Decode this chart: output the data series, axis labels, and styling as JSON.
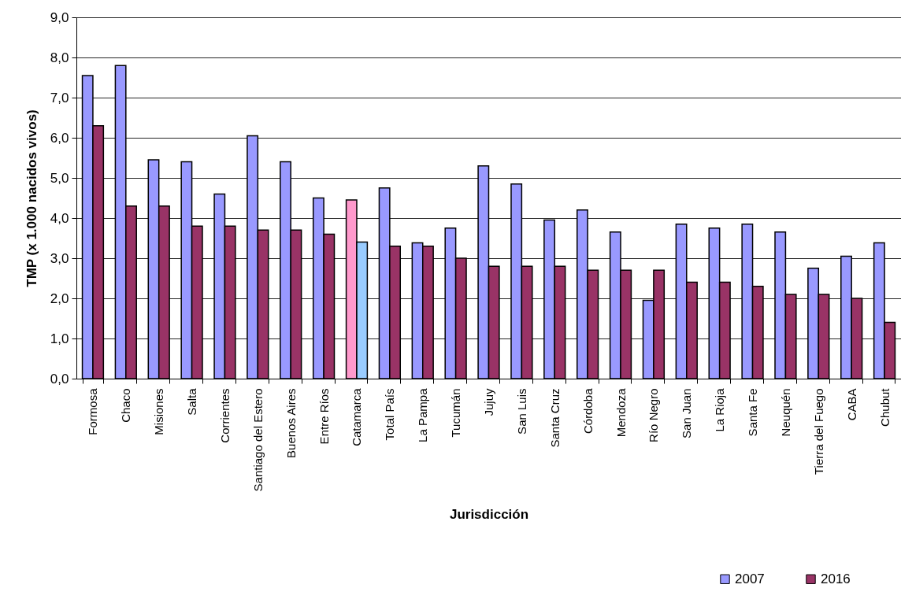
{
  "chart_data": {
    "type": "bar",
    "xlabel": "Jurisdicción",
    "ylabel": "TMP (x 1.000 nacidos vivos)",
    "categories": [
      "Formosa",
      "Chaco",
      "Misiones",
      "Salta",
      "Corrientes",
      "Santiago del Estero",
      "Buenos Aires",
      "Entre Ríos",
      "Catamarca",
      "Total País",
      "La Pampa",
      "Tucumán",
      "Jujuy",
      "San Luis",
      "Santa Cruz",
      "Córdoba",
      "Mendoza",
      "Río Negro",
      "San Juan",
      "La Rioja",
      "Santa Fe",
      "Neuquén",
      "Tierra del Fuego",
      "CABA",
      "Chubut"
    ],
    "series": [
      {
        "name": "2007",
        "color": "#9999ff",
        "colors": [
          "#9999ff",
          "#9999ff",
          "#9999ff",
          "#9999ff",
          "#9999ff",
          "#9999ff",
          "#9999ff",
          "#9999ff",
          "#ff99cc",
          "#9999ff",
          "#9999ff",
          "#9999ff",
          "#9999ff",
          "#9999ff",
          "#9999ff",
          "#9999ff",
          "#9999ff",
          "#9999ff",
          "#9999ff",
          "#9999ff",
          "#9999ff",
          "#9999ff",
          "#9999ff",
          "#9999ff",
          "#9999ff"
        ],
        "values": [
          7.55,
          7.8,
          5.45,
          5.4,
          4.6,
          6.05,
          5.4,
          4.5,
          4.45,
          4.75,
          3.38,
          3.75,
          5.3,
          4.85,
          3.95,
          4.2,
          3.65,
          1.95,
          3.85,
          3.75,
          3.85,
          3.65,
          2.75,
          3.05,
          3.38
        ]
      },
      {
        "name": "2016",
        "color": "#993366",
        "colors": [
          "#993366",
          "#993366",
          "#993366",
          "#993366",
          "#993366",
          "#993366",
          "#993366",
          "#993366",
          "#99ccff",
          "#993366",
          "#993366",
          "#993366",
          "#993366",
          "#993366",
          "#993366",
          "#993366",
          "#993366",
          "#993366",
          "#993366",
          "#993366",
          "#993366",
          "#993366",
          "#993366",
          "#993366",
          "#993366"
        ],
        "values": [
          6.3,
          4.3,
          4.3,
          3.8,
          3.8,
          3.7,
          3.7,
          3.6,
          3.4,
          3.3,
          3.3,
          3.0,
          2.8,
          2.8,
          2.8,
          2.7,
          2.7,
          2.7,
          2.4,
          2.4,
          2.3,
          2.1,
          2.1,
          2.0,
          1.4
        ]
      }
    ],
    "ylim": [
      0,
      9
    ],
    "yticks": [
      {
        "value": 0,
        "label": "0,0"
      },
      {
        "value": 1,
        "label": "1,0"
      },
      {
        "value": 2,
        "label": "2,0"
      },
      {
        "value": 3,
        "label": "3,0"
      },
      {
        "value": 4,
        "label": "4,0"
      },
      {
        "value": 5,
        "label": "5,0"
      },
      {
        "value": 6,
        "label": "6,0"
      },
      {
        "value": 7,
        "label": "7,0"
      },
      {
        "value": 8,
        "label": "8,0"
      },
      {
        "value": 9,
        "label": "9,0"
      }
    ],
    "grid": "y",
    "legend": "bottom right"
  }
}
